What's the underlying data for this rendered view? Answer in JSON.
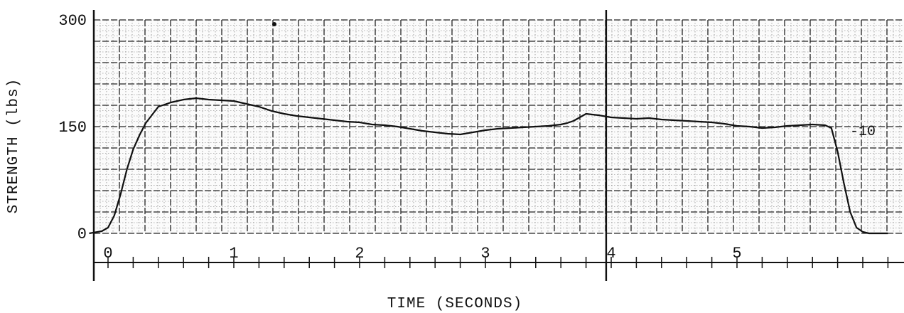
{
  "chart_data": {
    "type": "line",
    "title": "",
    "xlabel": "TIME (SECONDS)",
    "ylabel": "STRENGTH (lbs)",
    "xlim": [
      0,
      6.3
    ],
    "ylim": [
      0,
      300
    ],
    "y_ticks": [
      "0",
      "150",
      "300"
    ],
    "x_ticks": [
      "0",
      "1",
      "2",
      "3",
      "4",
      "5"
    ],
    "grid": true,
    "annotation": "-10",
    "series": [
      {
        "name": "",
        "x": [
          -0.15,
          -0.05,
          0.0,
          0.05,
          0.1,
          0.15,
          0.2,
          0.25,
          0.3,
          0.4,
          0.5,
          0.6,
          0.7,
          0.8,
          0.9,
          1.0,
          1.1,
          1.2,
          1.3,
          1.4,
          1.5,
          1.6,
          1.7,
          1.8,
          1.9,
          2.0,
          2.1,
          2.2,
          2.3,
          2.4,
          2.5,
          2.6,
          2.7,
          2.8,
          2.9,
          3.0,
          3.1,
          3.2,
          3.3,
          3.4,
          3.5,
          3.6,
          3.65,
          3.7,
          3.8,
          3.9,
          4.0,
          4.1,
          4.2,
          4.3,
          4.4,
          4.5,
          4.6,
          4.7,
          4.8,
          4.9,
          5.0,
          5.1,
          5.2,
          5.3,
          5.4,
          5.5,
          5.6,
          5.7,
          5.75,
          5.8,
          5.85,
          5.9,
          5.95,
          6.0,
          6.05,
          6.1,
          6.2
        ],
        "values": [
          0,
          3,
          8,
          25,
          55,
          90,
          118,
          138,
          155,
          178,
          184,
          188,
          190,
          188,
          187,
          186,
          182,
          178,
          172,
          168,
          165,
          163,
          161,
          159,
          157,
          156,
          153,
          152,
          150,
          147,
          144,
          142,
          140,
          139,
          142,
          145,
          147,
          148,
          149,
          150,
          151,
          153,
          155,
          158,
          168,
          166,
          163,
          162,
          161,
          162,
          160,
          159,
          158,
          157,
          156,
          154,
          151,
          150,
          148,
          149,
          151,
          152,
          153,
          152,
          148,
          115,
          70,
          30,
          8,
          2,
          0,
          0,
          0
        ]
      }
    ]
  }
}
